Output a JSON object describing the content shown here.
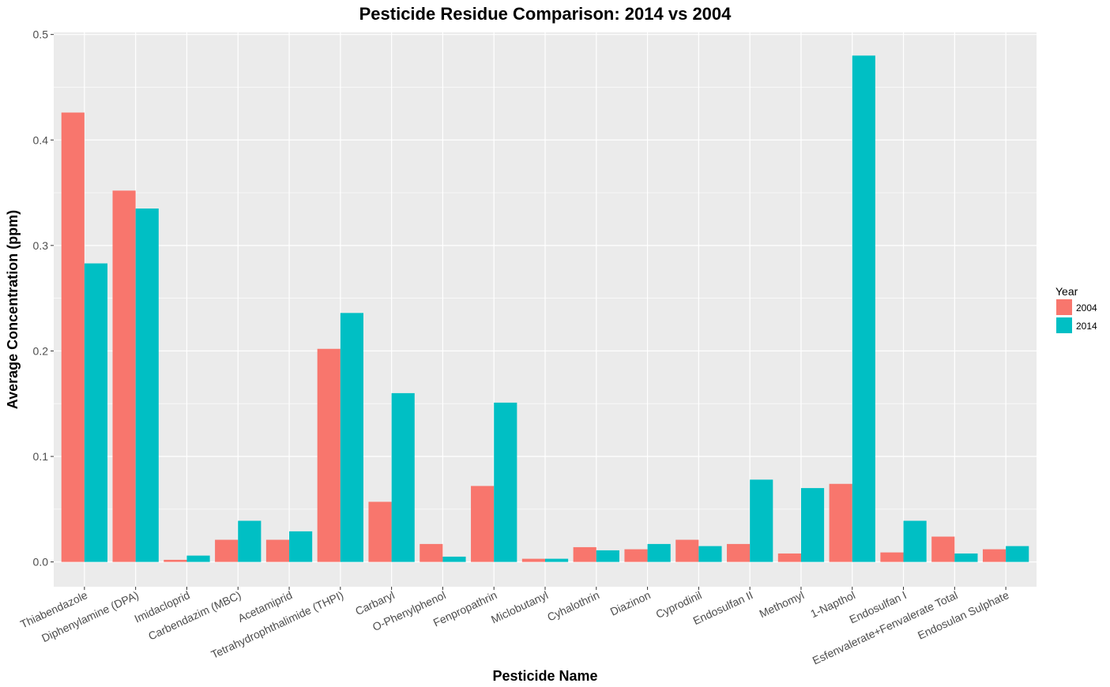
{
  "chart_data": {
    "type": "bar",
    "title": "Pesticide Residue Comparison: 2014 vs 2004",
    "xlabel": "Pesticide Name",
    "ylabel": "Average Concentration (ppm)",
    "ylim": [
      -0.0235,
      0.502
    ],
    "yticks": [
      0.0,
      0.1,
      0.2,
      0.3,
      0.4,
      0.5
    ],
    "ytick_labels": [
      "0.0",
      "0.1",
      "0.2",
      "0.3",
      "0.4",
      "0.5"
    ],
    "grid": true,
    "legend": {
      "title": "Year",
      "position": "right"
    },
    "categories": [
      "Thiabendazole",
      "Diphenylamine (DPA)",
      "Imidacloprid",
      "Carbendazim (MBC)",
      "Acetamiprid",
      "Tetrahydrophthalimide (THPI)",
      "Carbaryl",
      "O-Phenylphenol",
      "Fenpropathrin",
      "Miclobutanyl",
      "Cyhalothrin",
      "Diazinon",
      "Cyprodinil",
      "Endosulfan II",
      "Methomyl",
      "1-Napthol",
      "Endosulfan I",
      "Esfenvalerate+Fenvalerate Total",
      "Endosulan Sulphate"
    ],
    "series": [
      {
        "name": "2004",
        "color": "#F8766D",
        "values": [
          0.426,
          0.352,
          0.002,
          0.021,
          0.021,
          0.202,
          0.057,
          0.017,
          0.072,
          0.003,
          0.014,
          0.012,
          0.021,
          0.017,
          0.008,
          0.074,
          0.009,
          0.024,
          0.012
        ]
      },
      {
        "name": "2014",
        "color": "#00BFC4",
        "values": [
          0.283,
          0.335,
          0.006,
          0.039,
          0.029,
          0.236,
          0.16,
          0.005,
          0.151,
          0.003,
          0.011,
          0.017,
          0.015,
          0.078,
          0.07,
          0.48,
          0.039,
          0.008,
          0.015
        ]
      }
    ],
    "colors": {
      "panel": "#EBEBEB",
      "grid": "#FFFFFF"
    }
  }
}
